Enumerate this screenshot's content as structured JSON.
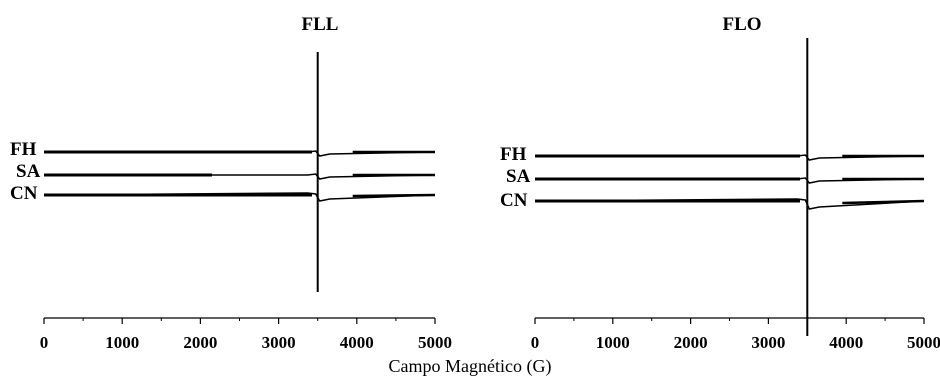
{
  "chart_data": [
    {
      "type": "line",
      "title": "FLL",
      "x": [
        0,
        1000,
        2000,
        3000,
        4000,
        5000
      ],
      "xlim": [
        0,
        5000
      ],
      "x_tick_labels": [
        "0",
        "1000",
        "2000",
        "3000",
        "4000",
        "5000"
      ],
      "xlabel": "",
      "ylabel": "",
      "grid": false,
      "legend": "none",
      "series": [
        {
          "name": "FH",
          "resonance_field": 3500
        },
        {
          "name": "SA",
          "resonance_field": 3500
        },
        {
          "name": "CN",
          "resonance_field": 3500
        }
      ]
    },
    {
      "type": "line",
      "title": "FLO",
      "x": [
        0,
        1000,
        2000,
        3000,
        4000,
        5000
      ],
      "xlim": [
        0,
        5000
      ],
      "x_tick_labels": [
        "0",
        "1000",
        "2000",
        "3000",
        "4000",
        "5000"
      ],
      "xlabel": "",
      "ylabel": "",
      "grid": false,
      "legend": "none",
      "series": [
        {
          "name": "FH",
          "resonance_field": 3500
        },
        {
          "name": "SA",
          "resonance_field": 3500
        },
        {
          "name": "CN",
          "resonance_field": 3500
        }
      ]
    }
  ],
  "shared_xlabel": "Campo Magnético (G)",
  "colors": {
    "line": "#000000",
    "background": "#ffffff"
  }
}
